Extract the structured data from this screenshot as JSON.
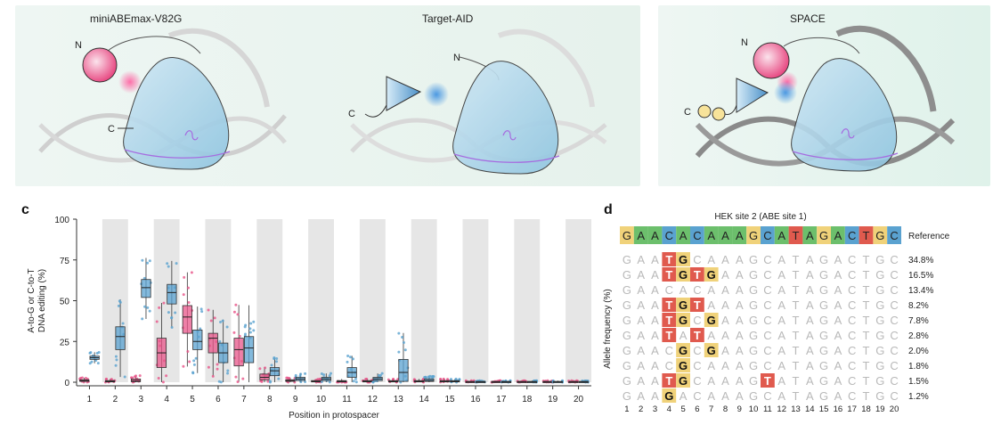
{
  "panels": {
    "top_titles": [
      "miniABEmax-V82G",
      "Target-AID",
      "SPACE"
    ],
    "terminus_labels": {
      "n": "N",
      "c": "C"
    },
    "c_label": "c",
    "d_label": "d"
  },
  "chart_data": [
    {
      "type": "box",
      "panel": "c",
      "xlabel": "Position in protospacer",
      "ylabel_lines": [
        "A-to-G  or C-to-T",
        "DNA editing (%)"
      ],
      "ylim": [
        0,
        100
      ],
      "yticks": [
        0,
        25,
        50,
        75,
        100
      ],
      "positions": [
        1,
        2,
        3,
        4,
        5,
        6,
        7,
        8,
        9,
        10,
        11,
        12,
        13,
        14,
        15,
        16,
        17,
        18,
        19,
        20
      ],
      "colors": {
        "pink": "#e8558a",
        "blue": "#5aa2d0"
      },
      "series": [
        {
          "color_key": "pink",
          "medians": [
            1,
            0.5,
            1,
            18,
            40,
            27,
            20,
            3,
            1,
            0.5,
            0.5,
            0.5,
            0.5,
            0.5,
            0.5,
            0.3,
            0.3,
            0.3,
            0.3,
            0.3
          ],
          "q1": [
            0.5,
            0.2,
            0.3,
            9,
            30,
            18,
            10,
            1.5,
            0.5,
            0.2,
            0.2,
            0.2,
            0.2,
            0.2,
            0.2,
            0.1,
            0.1,
            0.1,
            0.1,
            0.1
          ],
          "q3": [
            1.5,
            1,
            2,
            27,
            47,
            30,
            27,
            5,
            1.5,
            1,
            1,
            1,
            1,
            1,
            1,
            0.5,
            0.5,
            0.5,
            0.5,
            0.5
          ]
        },
        {
          "color_key": "blue",
          "medians": [
            15,
            28,
            58,
            55,
            25,
            18,
            21,
            7,
            2,
            2,
            6,
            2,
            6,
            1,
            0.5,
            0.3,
            0.3,
            0.3,
            0.3,
            0.3
          ],
          "q1": [
            14,
            20,
            52,
            48,
            20,
            12,
            12,
            4,
            1,
            1,
            3,
            1,
            0.5,
            0.5,
            0.2,
            0.1,
            0.1,
            0.1,
            0.1,
            0.1
          ],
          "q3": [
            16,
            34,
            63,
            60,
            32,
            24,
            28,
            9,
            3,
            3,
            9,
            3,
            14,
            2,
            1,
            0.5,
            0.5,
            0.5,
            0.5,
            0.5
          ]
        }
      ]
    },
    {
      "type": "table",
      "panel": "d",
      "title": "HEK site 2 (ABE site 1)",
      "reference_label": "Reference",
      "reference": [
        "G",
        "A",
        "A",
        "C",
        "A",
        "C",
        "A",
        "A",
        "A",
        "G",
        "C",
        "A",
        "T",
        "A",
        "G",
        "A",
        "C",
        "T",
        "G",
        "C"
      ],
      "ylabel": "Allele frequency (%)",
      "positions": [
        1,
        2,
        3,
        4,
        5,
        6,
        7,
        8,
        9,
        10,
        11,
        12,
        13,
        14,
        15,
        16,
        17,
        18,
        19,
        20
      ],
      "alleles": [
        {
          "edits": {
            "4": "T",
            "5": "G"
          },
          "freq": "34.8%"
        },
        {
          "edits": {
            "4": "T",
            "5": "G",
            "6": "T",
            "7": "G"
          },
          "freq": "16.5%"
        },
        {
          "edits": {},
          "freq": "13.4%"
        },
        {
          "edits": {
            "4": "T",
            "5": "G",
            "6": "T"
          },
          "freq": "8.2%"
        },
        {
          "edits": {
            "4": "T",
            "5": "G",
            "7": "G"
          },
          "freq": "7.8%"
        },
        {
          "edits": {
            "4": "T",
            "6": "T"
          },
          "freq": "2.8%"
        },
        {
          "edits": {
            "5": "G",
            "7": "G"
          },
          "freq": "2.0%"
        },
        {
          "edits": {
            "5": "G"
          },
          "freq": "1.8%"
        },
        {
          "edits": {
            "4": "T",
            "5": "G",
            "11": "T"
          },
          "freq": "1.5%"
        },
        {
          "edits": {
            "4": "G"
          },
          "freq": "1.2%"
        }
      ],
      "base_colors": {
        "A": "#6cbf6c",
        "G": "#f0d27a",
        "C": "#5aa2d0",
        "T": "#e05a4e"
      }
    }
  ]
}
